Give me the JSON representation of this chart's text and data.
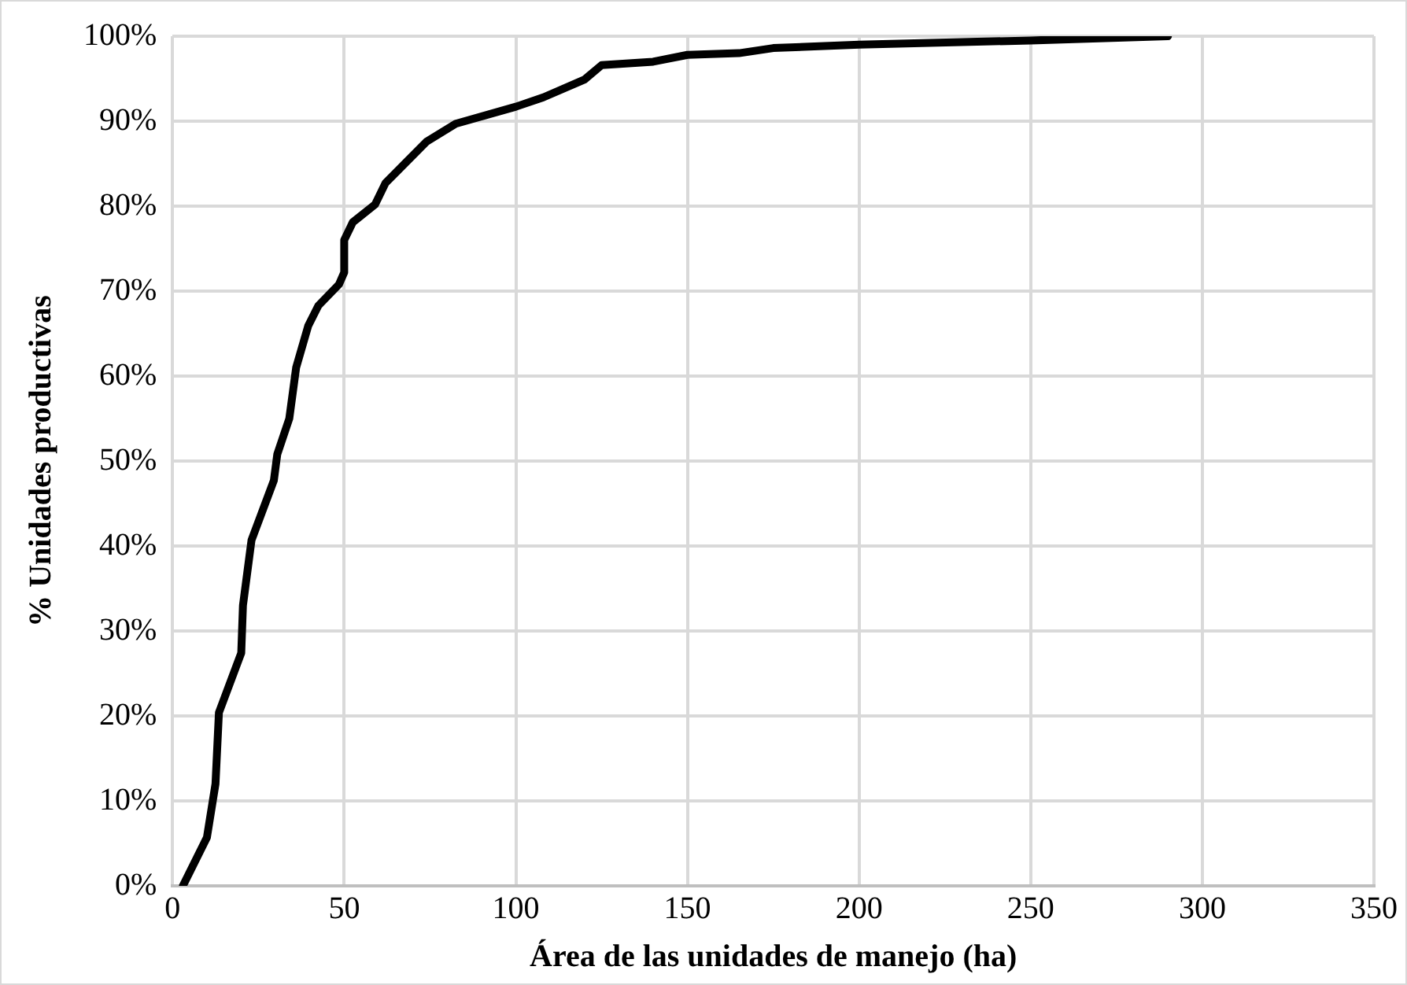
{
  "chart_data": {
    "type": "line",
    "xlabel": "Área de las unidades de manejo (ha)",
    "ylabel": "% Unidades productivas",
    "xlim": [
      0,
      350
    ],
    "xticks": [
      0,
      50,
      100,
      150,
      200,
      250,
      300,
      350
    ],
    "ylim": [
      0,
      100
    ],
    "yticks": [
      {
        "value": 0,
        "label": "0%"
      },
      {
        "value": 10,
        "label": "10%"
      },
      {
        "value": 20,
        "label": "20%"
      },
      {
        "value": 30,
        "label": "30%"
      },
      {
        "value": 40,
        "label": "40%"
      },
      {
        "value": 50,
        "label": "50%"
      },
      {
        "value": 60,
        "label": "60%"
      },
      {
        "value": 70,
        "label": "70%"
      },
      {
        "value": 80,
        "label": "80%"
      },
      {
        "value": 90,
        "label": "90%"
      },
      {
        "value": 100,
        "label": "100%"
      }
    ],
    "grid": true,
    "legend": false,
    "marker": "none",
    "line_style": "solid",
    "series": [
      {
        "color": "#000000",
        "x": [
          3,
          10,
          12.5,
          13.5,
          20,
          20.5,
          23,
          29.5,
          30.5,
          34,
          36,
          39.5,
          42.5,
          48.5,
          50,
          50,
          52.5,
          59,
          62,
          74,
          82.5,
          100,
          108,
          120,
          125,
          140,
          150,
          165,
          175,
          200,
          250,
          290
        ],
        "values": [
          0,
          5.7,
          12,
          20.4,
          27.4,
          33,
          40.7,
          47.7,
          50.8,
          55,
          61,
          65.9,
          68.3,
          70.8,
          72.2,
          76,
          78.1,
          80.2,
          82.7,
          87.6,
          89.7,
          91.7,
          92.8,
          94.9,
          96.6,
          97,
          97.8,
          98,
          98.6,
          99,
          99.5,
          100
        ]
      }
    ]
  }
}
